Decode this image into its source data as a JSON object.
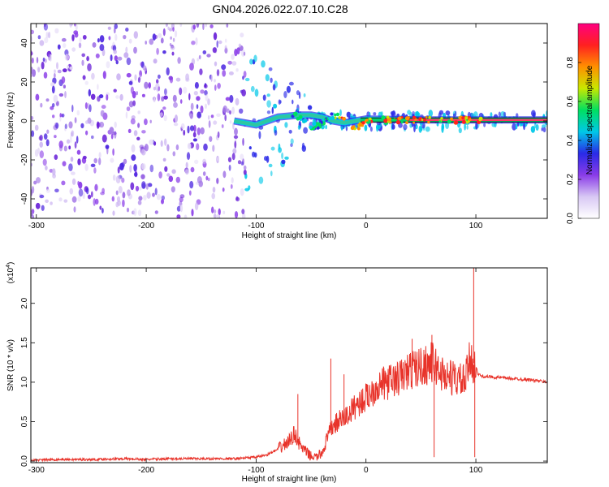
{
  "title": "GN04.2026.022.07.10.C28",
  "colors": {
    "snr_line": "#e8332a",
    "spectrogram_bg": "#ffffff",
    "ridge": "#2ec7a0",
    "highlight": "#ff3366"
  },
  "chart_data": [
    {
      "id": "spectrogram",
      "type": "heatmap",
      "xlabel": "Height of straight line (km)",
      "ylabel": "Frequency (Hz)",
      "xlim": [
        -305,
        165
      ],
      "ylim": [
        -50,
        50
      ],
      "xticks": [
        -300,
        -200,
        -100,
        0,
        100
      ],
      "yticks": [
        -40,
        -20,
        0,
        20,
        40
      ],
      "colorbar": {
        "label": "Normalized spectral amplitude",
        "range": [
          0.0,
          1.0
        ],
        "ticks": [
          "0.0",
          "0.2",
          "0.4",
          "0.6",
          "0.8"
        ],
        "tick_values": [
          0.0,
          0.2,
          0.4,
          0.6,
          0.8
        ],
        "colormap": [
          "#ffffff",
          "#d8c8f4",
          "#8a3ce8",
          "#2a2ae8",
          "#00c8e8",
          "#00e060",
          "#c8e800",
          "#ff9000",
          "#ff2020",
          "#ff0080"
        ]
      },
      "description": "Broad low-amplitude purple scatter below ~-100 km (full frequency band), narrowing to a strong ridge near 0 Hz above ~-50 km.",
      "ridge_points": [
        {
          "x": -120,
          "y": 0,
          "amp": 0.25
        },
        {
          "x": -100,
          "y": -2,
          "amp": 0.3
        },
        {
          "x": -80,
          "y": 2,
          "amp": 0.35
        },
        {
          "x": -60,
          "y": 3,
          "amp": 0.45
        },
        {
          "x": -50,
          "y": 3,
          "amp": 0.55
        },
        {
          "x": -40,
          "y": 2,
          "amp": 0.6
        },
        {
          "x": -30,
          "y": 0,
          "amp": 0.65
        },
        {
          "x": -20,
          "y": -1,
          "amp": 0.7
        },
        {
          "x": 0,
          "y": 1,
          "amp": 0.75
        },
        {
          "x": 50,
          "y": 0.5,
          "amp": 0.85
        },
        {
          "x": 100,
          "y": 0.5,
          "amp": 0.9
        },
        {
          "x": 165,
          "y": 0.5,
          "amp": 0.95
        }
      ]
    },
    {
      "id": "snr",
      "type": "line",
      "xlabel": "Height of straight line (km)",
      "ylabel": "SNR (10 * v/v)",
      "y_multiplier": "(x10",
      "y_multiplier_exp": "4",
      "y_multiplier_close": ")",
      "xlim": [
        -305,
        165
      ],
      "ylim": [
        -0.02,
        2.45
      ],
      "xticks": [
        -300,
        -200,
        -100,
        0,
        100
      ],
      "yticks": [
        0.0,
        0.5,
        1.0,
        1.5,
        2.0
      ],
      "ytick_labels": [
        "0.0",
        "0.5",
        "1.0",
        "1.5",
        "2.0"
      ],
      "series": [
        {
          "x": [
            -305,
            -280,
            -250,
            -220,
            -200,
            -180,
            -150,
            -120,
            -100,
            -90,
            -80,
            -70,
            -65,
            -60,
            -55,
            -50,
            -45,
            -40,
            -35,
            -30,
            -25,
            -20,
            -15,
            -10,
            -5,
            0,
            10,
            20,
            30,
            40,
            50,
            60,
            70,
            80,
            90,
            95,
            100,
            102,
            105,
            110,
            120,
            130,
            140,
            150,
            165
          ],
          "y": [
            0.01,
            0.02,
            0.02,
            0.03,
            0.02,
            0.03,
            0.03,
            0.03,
            0.05,
            0.08,
            0.15,
            0.25,
            0.35,
            0.2,
            0.12,
            0.06,
            0.05,
            0.1,
            0.3,
            0.45,
            0.5,
            0.55,
            0.6,
            0.7,
            0.75,
            0.8,
            0.95,
            1.0,
            1.05,
            1.15,
            1.2,
            1.25,
            1.1,
            1.05,
            1.0,
            1.3,
            1.2,
            1.1,
            1.08,
            1.07,
            1.06,
            1.05,
            1.04,
            1.03,
            1.0
          ]
        }
      ],
      "spikes": [
        {
          "x": -62,
          "y": 0.85
        },
        {
          "x": -32,
          "y": 1.3
        },
        {
          "x": -20,
          "y": 1.1
        },
        {
          "x": 42,
          "y": 1.55
        },
        {
          "x": 60,
          "y": 1.6
        },
        {
          "x": 62,
          "y": 0.05
        },
        {
          "x": 98,
          "y": 2.45
        },
        {
          "x": 99,
          "y": 0.05
        }
      ]
    }
  ]
}
